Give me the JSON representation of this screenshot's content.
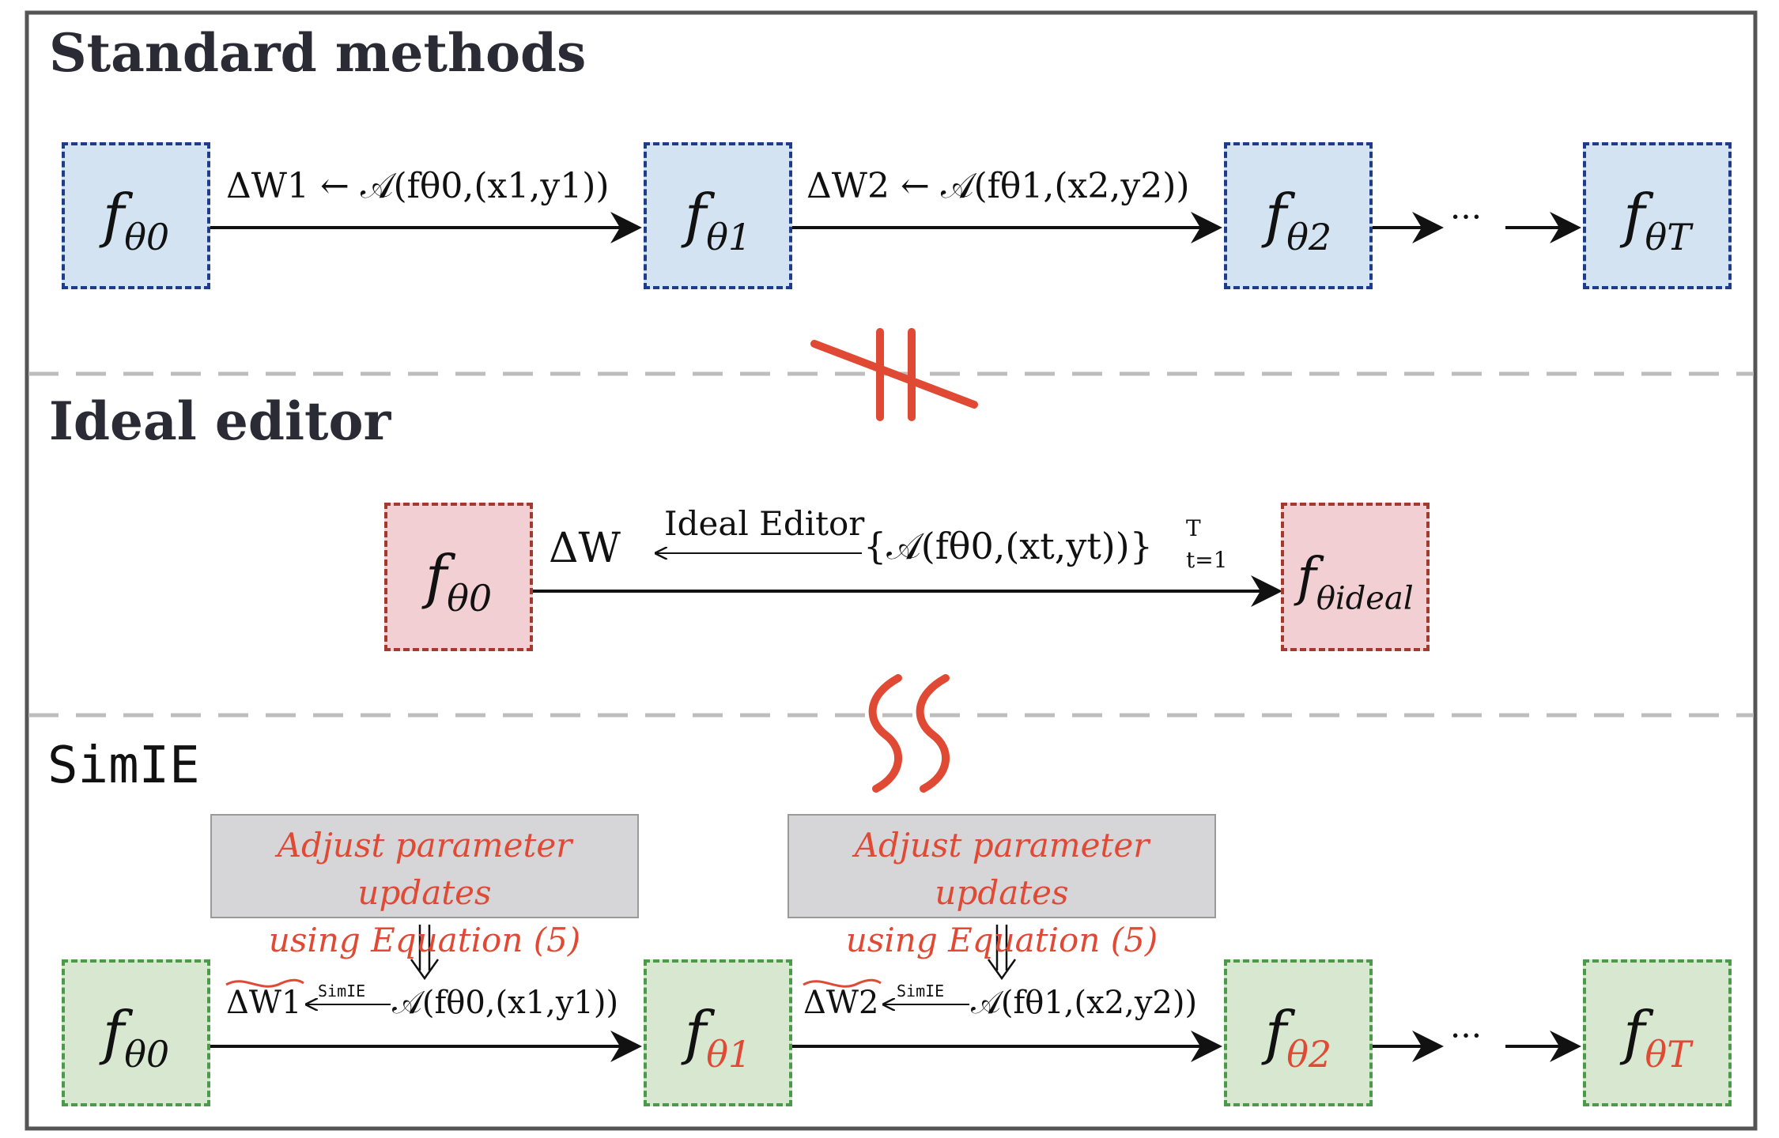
{
  "sections": {
    "standard": {
      "title": "Standard methods"
    },
    "ideal": {
      "title": "Ideal editor"
    },
    "simie": {
      "title": "SimIE"
    }
  },
  "standard": {
    "boxes": [
      "θ0",
      "θ1",
      "θ2",
      "θT"
    ],
    "edge1": {
      "lhs": "ΔW1",
      "rhs": "𝒜(fθ0,(x1,y1))"
    },
    "edge2": {
      "lhs": "ΔW2",
      "rhs": "𝒜(fθ1,(x2,y2))"
    },
    "ellipsis": "···"
  },
  "ideal": {
    "box_start": "θ0",
    "box_end": "θideal",
    "edge": {
      "lhs": "ΔW",
      "over": "Ideal Editor",
      "rhs": "{𝒜(fθ0,(xt,yt))}",
      "sup": "T",
      "subscript": "t=1"
    }
  },
  "simie": {
    "boxes": [
      "θ0",
      "θ1",
      "θ2",
      "θT"
    ],
    "note1": {
      "line1": "Adjust parameter updates",
      "line2": "using Equation (5)"
    },
    "note2": {
      "line1": "Adjust parameter updates",
      "line2": "using Equation (5)"
    },
    "edge1": {
      "lhs": "ΔW1",
      "over": "SimIE",
      "rhs": "𝒜(fθ0,(x1,y1))"
    },
    "edge2": {
      "lhs": "ΔW2",
      "over": "SimIE",
      "rhs": "𝒜(fθ1,(x2,y2))"
    },
    "ellipsis": "···"
  },
  "colors": {
    "blue_fill": "#d3e3f1",
    "blue_border": "#1f3c8a",
    "pink_fill": "#f1cfd2",
    "pink_border": "#a33a2e",
    "green_fill": "#d8e8d0",
    "green_border": "#4a9a4a",
    "accent_red": "#e04a35",
    "separator": "#bdbdbd",
    "frame": "#555555"
  },
  "symbols": {
    "not_equal": "not-equal-symbol",
    "approx": "approx-symbol"
  }
}
